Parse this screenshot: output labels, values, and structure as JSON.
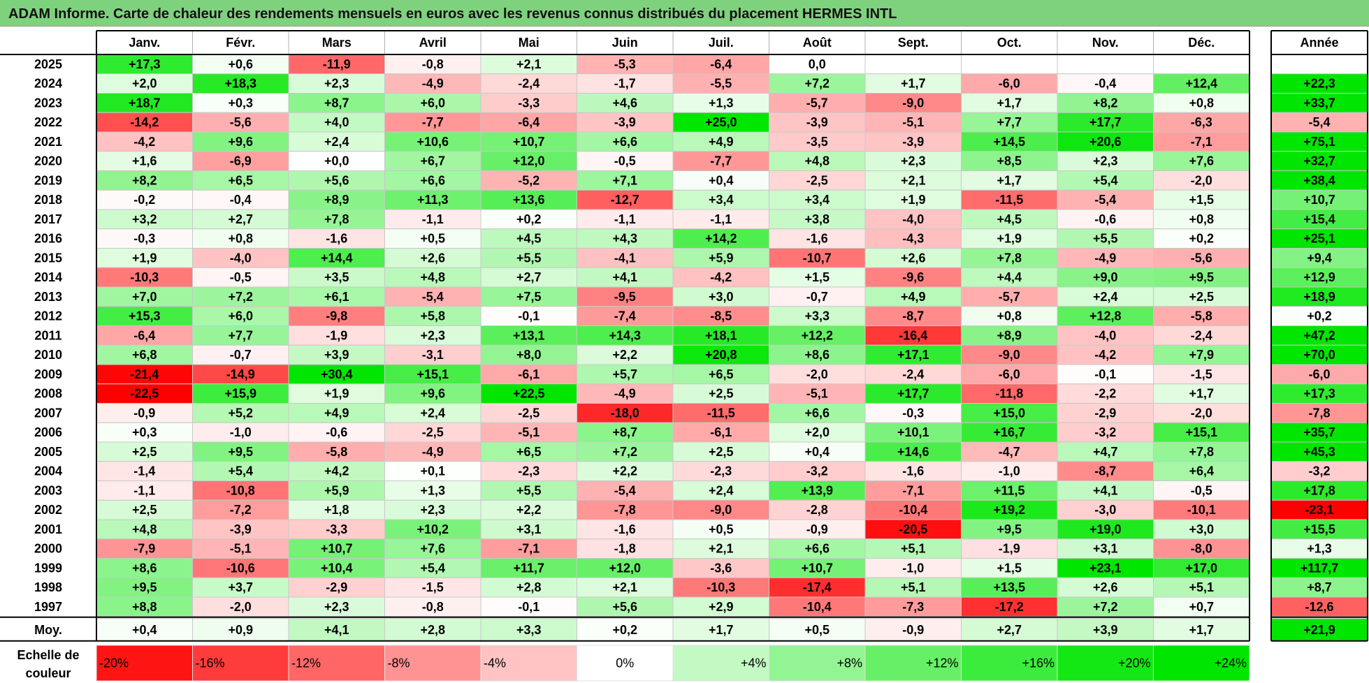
{
  "title": "ADAM Informe. Carte de chaleur des rendements mensuels en euros avec les revenus connus distribués du placement HERMES INTL",
  "chart_data": {
    "type": "heatmap",
    "months": [
      "Janv.",
      "Févr.",
      "Mars",
      "Avril",
      "Mai",
      "Juin",
      "Juil.",
      "Août",
      "Sept.",
      "Oct.",
      "Nov.",
      "Déc."
    ],
    "year_header": "Année",
    "rows": [
      {
        "year": "2025",
        "values": [
          "+17,3",
          "+0,6",
          "-11,9",
          "-0,8",
          "+2,1",
          "-5,3",
          "-6,4",
          "0,0",
          "",
          "",
          "",
          ""
        ],
        "annual": ""
      },
      {
        "year": "2024",
        "values": [
          "+2,0",
          "+18,3",
          "+2,3",
          "-4,9",
          "-2,4",
          "-1,7",
          "-5,5",
          "+7,2",
          "+1,7",
          "-6,0",
          "-0,4",
          "+12,4"
        ],
        "annual": "+22,3"
      },
      {
        "year": "2023",
        "values": [
          "+18,7",
          "+0,3",
          "+8,7",
          "+6,0",
          "-3,3",
          "+4,6",
          "+1,3",
          "-5,7",
          "-9,0",
          "+1,7",
          "+8,2",
          "+0,8"
        ],
        "annual": "+33,7"
      },
      {
        "year": "2022",
        "values": [
          "-14,2",
          "-5,6",
          "+4,0",
          "-7,7",
          "-6,4",
          "-3,9",
          "+25,0",
          "-3,9",
          "-5,1",
          "+7,7",
          "+17,7",
          "-6,3"
        ],
        "annual": "-5,4"
      },
      {
        "year": "2021",
        "values": [
          "-4,2",
          "+9,6",
          "+2,4",
          "+10,6",
          "+10,7",
          "+6,6",
          "+4,9",
          "-3,5",
          "-3,9",
          "+14,5",
          "+20,6",
          "-7,1"
        ],
        "annual": "+75,1"
      },
      {
        "year": "2020",
        "values": [
          "+1,6",
          "-6,9",
          "+0,0",
          "+6,7",
          "+12,0",
          "-0,5",
          "-7,7",
          "+4,8",
          "+2,3",
          "+8,5",
          "+2,3",
          "+7,6"
        ],
        "annual": "+32,7"
      },
      {
        "year": "2019",
        "values": [
          "+8,2",
          "+6,5",
          "+5,6",
          "+6,6",
          "-5,2",
          "+7,1",
          "+0,4",
          "-2,5",
          "+2,1",
          "+1,7",
          "+5,4",
          "-2,0"
        ],
        "annual": "+38,4"
      },
      {
        "year": "2018",
        "values": [
          "-0,2",
          "-0,4",
          "+8,9",
          "+11,3",
          "+13,6",
          "-12,7",
          "+3,4",
          "+3,4",
          "+1,9",
          "-11,5",
          "-5,4",
          "+1,5"
        ],
        "annual": "+10,7"
      },
      {
        "year": "2017",
        "values": [
          "+3,2",
          "+2,7",
          "+7,8",
          "-1,1",
          "+0,2",
          "-1,1",
          "-1,1",
          "+3,8",
          "-4,0",
          "+4,5",
          "-0,6",
          "+0,8"
        ],
        "annual": "+15,4"
      },
      {
        "year": "2016",
        "values": [
          "-0,3",
          "+0,8",
          "-1,6",
          "+0,5",
          "+4,5",
          "+4,3",
          "+14,2",
          "-1,6",
          "-4,3",
          "+1,9",
          "+5,5",
          "+0,2"
        ],
        "annual": "+25,1"
      },
      {
        "year": "2015",
        "values": [
          "+1,9",
          "-4,0",
          "+14,4",
          "+2,6",
          "+5,5",
          "-4,1",
          "+5,9",
          "-10,7",
          "+2,6",
          "+7,8",
          "-4,9",
          "-5,6"
        ],
        "annual": "+9,4"
      },
      {
        "year": "2014",
        "values": [
          "-10,3",
          "-0,5",
          "+3,5",
          "+4,8",
          "+2,7",
          "+4,1",
          "-4,2",
          "+1,5",
          "-9,6",
          "+4,4",
          "+9,0",
          "+9,5"
        ],
        "annual": "+12,9"
      },
      {
        "year": "2013",
        "values": [
          "+7,0",
          "+7,2",
          "+6,1",
          "-5,4",
          "+7,5",
          "-9,5",
          "+3,0",
          "-0,7",
          "+4,9",
          "-5,7",
          "+2,4",
          "+2,5"
        ],
        "annual": "+18,9"
      },
      {
        "year": "2012",
        "values": [
          "+15,3",
          "+6,0",
          "-9,8",
          "+5,8",
          "-0,1",
          "-7,4",
          "-8,5",
          "+3,3",
          "-8,7",
          "+0,8",
          "+12,8",
          "-5,8"
        ],
        "annual": "+0,2"
      },
      {
        "year": "2011",
        "values": [
          "-6,4",
          "+7,7",
          "-1,9",
          "+2,3",
          "+13,1",
          "+14,3",
          "+18,1",
          "+12,2",
          "-16,4",
          "+8,9",
          "-4,0",
          "-2,4"
        ],
        "annual": "+47,2"
      },
      {
        "year": "2010",
        "values": [
          "+6,8",
          "-0,7",
          "+3,9",
          "-3,1",
          "+8,0",
          "+2,2",
          "+20,8",
          "+8,6",
          "+17,1",
          "-9,0",
          "-4,2",
          "+7,9"
        ],
        "annual": "+70,0"
      },
      {
        "year": "2009",
        "values": [
          "-21,4",
          "-14,9",
          "+30,4",
          "+15,1",
          "-6,1",
          "+5,7",
          "+6,5",
          "-2,0",
          "-2,4",
          "-6,0",
          "-0,1",
          "-1,5"
        ],
        "annual": "-6,0"
      },
      {
        "year": "2008",
        "values": [
          "-22,5",
          "+15,9",
          "+1,9",
          "+9,6",
          "+22,5",
          "-4,9",
          "+2,5",
          "-5,1",
          "+17,7",
          "-11,8",
          "-2,2",
          "+1,7"
        ],
        "annual": "+17,3"
      },
      {
        "year": "2007",
        "values": [
          "-0,9",
          "+5,2",
          "+4,9",
          "+2,4",
          "-2,5",
          "-18,0",
          "-11,5",
          "+6,6",
          "-0,3",
          "+15,0",
          "-2,9",
          "-2,0"
        ],
        "annual": "-7,8"
      },
      {
        "year": "2006",
        "values": [
          "+0,3",
          "-1,0",
          "-0,6",
          "-2,5",
          "-5,1",
          "+8,7",
          "-6,1",
          "+2,0",
          "+10,1",
          "+16,7",
          "-3,2",
          "+15,1"
        ],
        "annual": "+35,7"
      },
      {
        "year": "2005",
        "values": [
          "+2,5",
          "+9,5",
          "-5,8",
          "-4,9",
          "+6,5",
          "+7,2",
          "+2,5",
          "+0,4",
          "+14,6",
          "-4,7",
          "+4,7",
          "+7,8"
        ],
        "annual": "+45,3"
      },
      {
        "year": "2004",
        "values": [
          "-1,4",
          "+5,4",
          "+4,2",
          "+0,1",
          "-2,3",
          "+2,2",
          "-2,3",
          "-3,2",
          "-1,6",
          "-1,0",
          "-8,7",
          "+6,4"
        ],
        "annual": "-3,2"
      },
      {
        "year": "2003",
        "values": [
          "-1,1",
          "-10,8",
          "+5,9",
          "+1,3",
          "+5,5",
          "-5,4",
          "+2,4",
          "+13,9",
          "-7,1",
          "+11,5",
          "+4,1",
          "-0,5"
        ],
        "annual": "+17,8"
      },
      {
        "year": "2002",
        "values": [
          "+2,5",
          "-7,2",
          "+1,8",
          "+2,3",
          "+2,2",
          "-7,8",
          "-9,0",
          "-2,8",
          "-10,4",
          "+19,2",
          "-3,0",
          "-10,1"
        ],
        "annual": "-23,1"
      },
      {
        "year": "2001",
        "values": [
          "+4,8",
          "-3,9",
          "-3,3",
          "+10,2",
          "+3,1",
          "-1,6",
          "+0,5",
          "-0,9",
          "-20,5",
          "+9,5",
          "+19,0",
          "+3,0"
        ],
        "annual": "+15,5"
      },
      {
        "year": "2000",
        "values": [
          "-7,9",
          "-5,1",
          "+10,7",
          "+7,6",
          "-7,1",
          "-1,8",
          "+2,1",
          "+6,6",
          "+5,1",
          "-1,9",
          "+3,1",
          "-8,0"
        ],
        "annual": "+1,3"
      },
      {
        "year": "1999",
        "values": [
          "+8,6",
          "-10,6",
          "+10,4",
          "+5,4",
          "+11,7",
          "+12,0",
          "-3,6",
          "+10,7",
          "-1,0",
          "+1,5",
          "+23,1",
          "+17,0"
        ],
        "annual": "+117,7"
      },
      {
        "year": "1998",
        "values": [
          "+9,5",
          "+3,7",
          "-2,9",
          "-1,5",
          "+2,8",
          "+2,1",
          "-10,3",
          "-17,4",
          "+5,1",
          "+13,5",
          "+2,6",
          "+5,1"
        ],
        "annual": "+8,7"
      },
      {
        "year": "1997",
        "values": [
          "+8,8",
          "-2,0",
          "+2,3",
          "-0,8",
          "-0,1",
          "+5,6",
          "+2,9",
          "-10,4",
          "-7,3",
          "-17,2",
          "+7,2",
          "+0,7"
        ],
        "annual": "-12,6"
      }
    ],
    "average": {
      "label": "Moy.",
      "values": [
        "+0,4",
        "+0,9",
        "+4,1",
        "+2,8",
        "+3,3",
        "+0,2",
        "+1,7",
        "+0,5",
        "-0,9",
        "+2,7",
        "+3,9",
        "+1,7"
      ],
      "annual": "+21,9"
    },
    "scale": {
      "label_line1": "Echelle de",
      "label_line2": "couleur",
      "stops": [
        "-20%",
        "-16%",
        "-12%",
        "-8%",
        "-4%",
        "0%",
        "+4%",
        "+8%",
        "+12%",
        "+16%",
        "+20%",
        "+24%"
      ]
    },
    "colors": {
      "negative_max": "#ff0000",
      "positive_max": "#00e600",
      "neutral": "#ffffff",
      "title_bar": "#7ed27e"
    }
  }
}
